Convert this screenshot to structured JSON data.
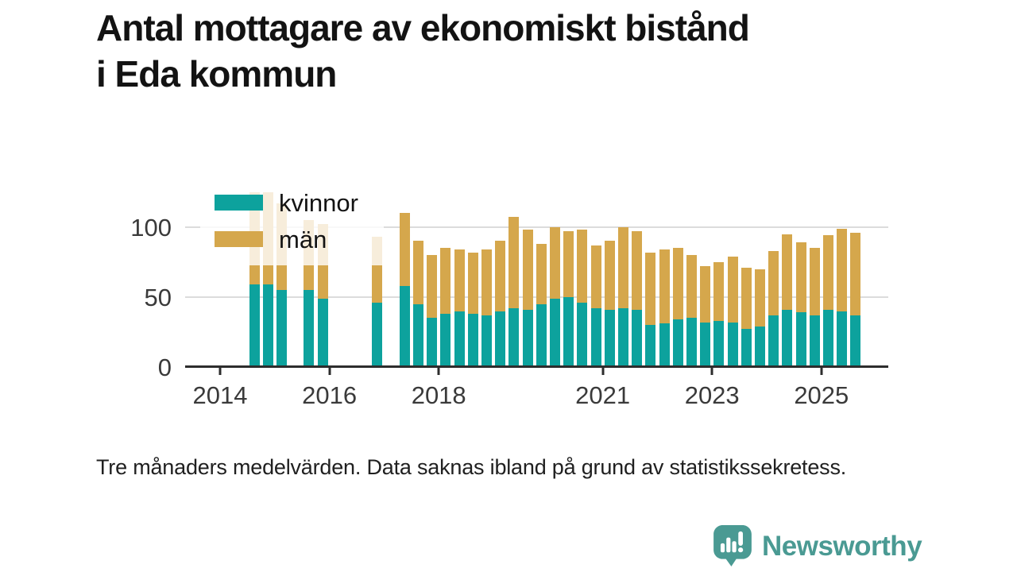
{
  "header": {
    "line1": "Antal mottagare av ekonomiskt bistånd",
    "line2": "i Eda kommun"
  },
  "legend": {
    "items": [
      {
        "label": "kvinnor",
        "color": "#0da29d"
      },
      {
        "label": "män",
        "color": "#d5a74c"
      }
    ]
  },
  "footnote": {
    "text": "Tre månaders medelvärden. Data saknas ibland på grund av statistikssekretess."
  },
  "branding": {
    "name": "Newsworthy",
    "color": "#4a9a93",
    "icon": "speech-bubble-bar-chart-icon"
  },
  "chart_data": {
    "type": "bar",
    "stacked": true,
    "title": "Antal mottagare av ekonomiskt bistånd i Eda kommun",
    "xlabel": "",
    "ylabel": "",
    "ylim": [
      0,
      128
    ],
    "y_ticks": [
      0,
      50,
      100
    ],
    "x_ticks": [
      2014,
      2016,
      2018,
      2021,
      2023,
      2025
    ],
    "grid": "horizontal",
    "legend_position": "top-left-overlay",
    "series_names": [
      "kvinnor",
      "män"
    ],
    "note": "null values = quarters hidden due to statistical secrecy",
    "quarters": [
      {
        "period": "2014-Q3",
        "kvinnor": 59,
        "man": 66
      },
      {
        "period": "2014-Q4",
        "kvinnor": 59,
        "man": 66
      },
      {
        "period": "2015-Q1",
        "kvinnor": 55,
        "man": 62
      },
      {
        "period": "2015-Q2",
        "kvinnor": null,
        "man": null
      },
      {
        "period": "2015-Q3",
        "kvinnor": 55,
        "man": 50
      },
      {
        "period": "2015-Q4",
        "kvinnor": 49,
        "man": 53
      },
      {
        "period": "2016-Q1",
        "kvinnor": null,
        "man": null
      },
      {
        "period": "2016-Q2",
        "kvinnor": null,
        "man": null
      },
      {
        "period": "2016-Q3",
        "kvinnor": null,
        "man": null
      },
      {
        "period": "2016-Q4",
        "kvinnor": 46,
        "man": 47
      },
      {
        "period": "2017-Q1",
        "kvinnor": null,
        "man": null
      },
      {
        "period": "2017-Q2",
        "kvinnor": 58,
        "man": 52
      },
      {
        "period": "2017-Q3",
        "kvinnor": 45,
        "man": 45
      },
      {
        "period": "2017-Q4",
        "kvinnor": 35,
        "man": 45
      },
      {
        "period": "2018-Q1",
        "kvinnor": 38,
        "man": 47
      },
      {
        "period": "2018-Q2",
        "kvinnor": 40,
        "man": 44
      },
      {
        "period": "2018-Q3",
        "kvinnor": 38,
        "man": 44
      },
      {
        "period": "2018-Q4",
        "kvinnor": 37,
        "man": 47
      },
      {
        "period": "2019-Q1",
        "kvinnor": 40,
        "man": 50
      },
      {
        "period": "2019-Q2",
        "kvinnor": 42,
        "man": 65
      },
      {
        "period": "2019-Q3",
        "kvinnor": 41,
        "man": 57
      },
      {
        "period": "2019-Q4",
        "kvinnor": 45,
        "man": 43
      },
      {
        "period": "2020-Q1",
        "kvinnor": 49,
        "man": 51
      },
      {
        "period": "2020-Q2",
        "kvinnor": 50,
        "man": 47
      },
      {
        "period": "2020-Q3",
        "kvinnor": 46,
        "man": 52
      },
      {
        "period": "2020-Q4",
        "kvinnor": 42,
        "man": 45
      },
      {
        "period": "2021-Q1",
        "kvinnor": 41,
        "man": 49
      },
      {
        "period": "2021-Q2",
        "kvinnor": 42,
        "man": 58
      },
      {
        "period": "2021-Q3",
        "kvinnor": 41,
        "man": 56
      },
      {
        "period": "2021-Q4",
        "kvinnor": 30,
        "man": 52
      },
      {
        "period": "2022-Q1",
        "kvinnor": 31,
        "man": 53
      },
      {
        "period": "2022-Q2",
        "kvinnor": 34,
        "man": 51
      },
      {
        "period": "2022-Q3",
        "kvinnor": 35,
        "man": 45
      },
      {
        "period": "2022-Q4",
        "kvinnor": 32,
        "man": 40
      },
      {
        "period": "2023-Q1",
        "kvinnor": 33,
        "man": 42
      },
      {
        "period": "2023-Q2",
        "kvinnor": 32,
        "man": 47
      },
      {
        "period": "2023-Q3",
        "kvinnor": 27,
        "man": 44
      },
      {
        "period": "2023-Q4",
        "kvinnor": 29,
        "man": 41
      },
      {
        "period": "2024-Q1",
        "kvinnor": 37,
        "man": 46
      },
      {
        "period": "2024-Q2",
        "kvinnor": 41,
        "man": 54
      },
      {
        "period": "2024-Q3",
        "kvinnor": 39,
        "man": 50
      },
      {
        "period": "2024-Q4",
        "kvinnor": 37,
        "man": 48
      },
      {
        "period": "2025-Q1",
        "kvinnor": 41,
        "man": 53
      },
      {
        "period": "2025-Q2",
        "kvinnor": 40,
        "man": 59
      },
      {
        "period": "2025-Q3",
        "kvinnor": 37,
        "man": 59
      }
    ]
  }
}
